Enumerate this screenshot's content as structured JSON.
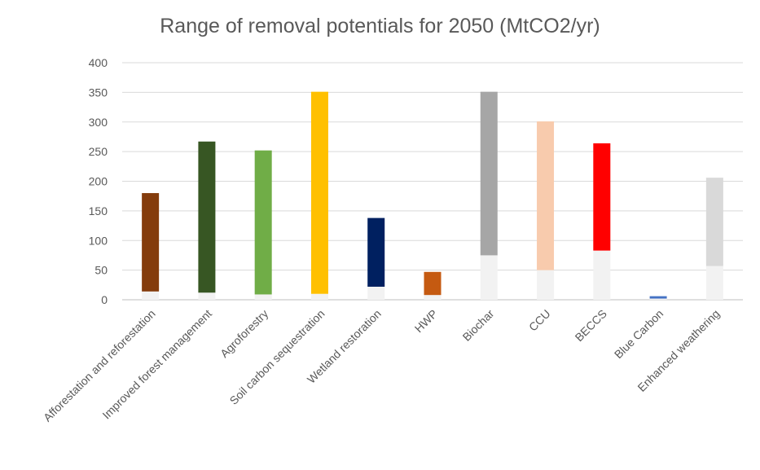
{
  "chart_data": {
    "type": "bar",
    "subtype": "floating-range",
    "title": "Range of removal potentials for 2050 (MtCO2/yr)",
    "xlabel": "",
    "ylabel": "",
    "ylim": [
      0,
      400
    ],
    "yticks": [
      0,
      50,
      100,
      150,
      200,
      250,
      300,
      350,
      400
    ],
    "grid": true,
    "legend": "none",
    "categories": [
      "Afforestation and reforestation",
      "Improved forest management",
      "Agroforestry",
      "Soil carbon sequestration",
      "Wetland restoration",
      "HWP",
      "Biochar",
      "CCU",
      "BECCS",
      "Blue Carbon",
      "Enhanced weathering"
    ],
    "low": [
      14,
      12,
      9,
      10,
      22,
      8,
      75,
      50,
      83,
      2,
      57
    ],
    "high": [
      180,
      267,
      252,
      351,
      138,
      47,
      351,
      301,
      264,
      6,
      206
    ],
    "colors": [
      "#843C0C",
      "#375623",
      "#70AD47",
      "#FFC000",
      "#002060",
      "#C55A11",
      "#A6A6A6",
      "#F8CBAD",
      "#FF0000",
      "#4472C4",
      "#D9D9D9"
    ],
    "base_color": "#F2F2F2"
  }
}
